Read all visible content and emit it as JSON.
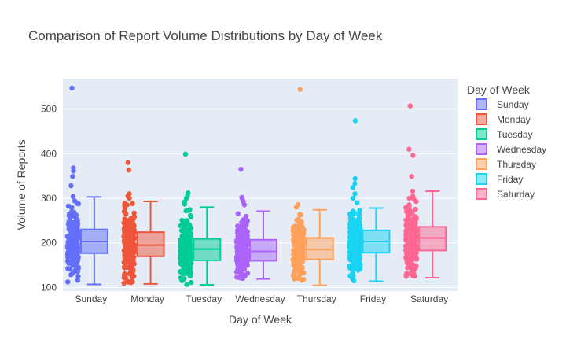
{
  "chart_data": {
    "type": "box",
    "title": "Comparison of Report Volume Distributions by Day of Week",
    "xlabel": "Day of Week",
    "ylabel": "Volume of Reports",
    "ylim": [
      92,
      568
    ],
    "yticks": [
      100,
      200,
      300,
      400,
      500
    ],
    "grid": true,
    "legend_title": "Day of Week",
    "legend_position": "right",
    "categories": [
      "Sunday",
      "Monday",
      "Tuesday",
      "Wednesday",
      "Thursday",
      "Friday",
      "Saturday"
    ],
    "series": [
      {
        "name": "Sunday",
        "color": "#636efa",
        "min": 107,
        "q1": 177,
        "median": 203,
        "q3": 230,
        "max": 303,
        "outliers": [
          547,
          368,
          361,
          349,
          328,
          304
        ]
      },
      {
        "name": "Monday",
        "color": "#ef553b",
        "min": 108,
        "q1": 170,
        "median": 195,
        "q3": 224,
        "max": 293,
        "outliers": [
          380,
          363,
          310,
          305,
          300
        ]
      },
      {
        "name": "Tuesday",
        "color": "#00cc96",
        "min": 106,
        "q1": 161,
        "median": 186,
        "q3": 209,
        "max": 280,
        "outliers": [
          399,
          312,
          306,
          300,
          292,
          287
        ]
      },
      {
        "name": "Wednesday",
        "color": "#ab63fa",
        "min": 119,
        "q1": 160,
        "median": 181,
        "q3": 207,
        "max": 271,
        "outliers": [
          365,
          302,
          298,
          292,
          285
        ]
      },
      {
        "name": "Thursday",
        "color": "#ffa15a",
        "min": 105,
        "q1": 163,
        "median": 185,
        "q3": 211,
        "max": 274,
        "outliers": [
          544,
          286,
          280
        ]
      },
      {
        "name": "Friday",
        "color": "#19d3f3",
        "min": 114,
        "q1": 178,
        "median": 203,
        "q3": 228,
        "max": 278,
        "outliers": [
          474,
          344,
          333,
          324,
          310,
          300,
          290
        ]
      },
      {
        "name": "Saturday",
        "color": "#ff6692",
        "min": 122,
        "q1": 183,
        "median": 211,
        "q3": 236,
        "max": 316,
        "outliers": [
          507,
          410,
          396,
          349,
          316,
          300
        ]
      }
    ]
  }
}
